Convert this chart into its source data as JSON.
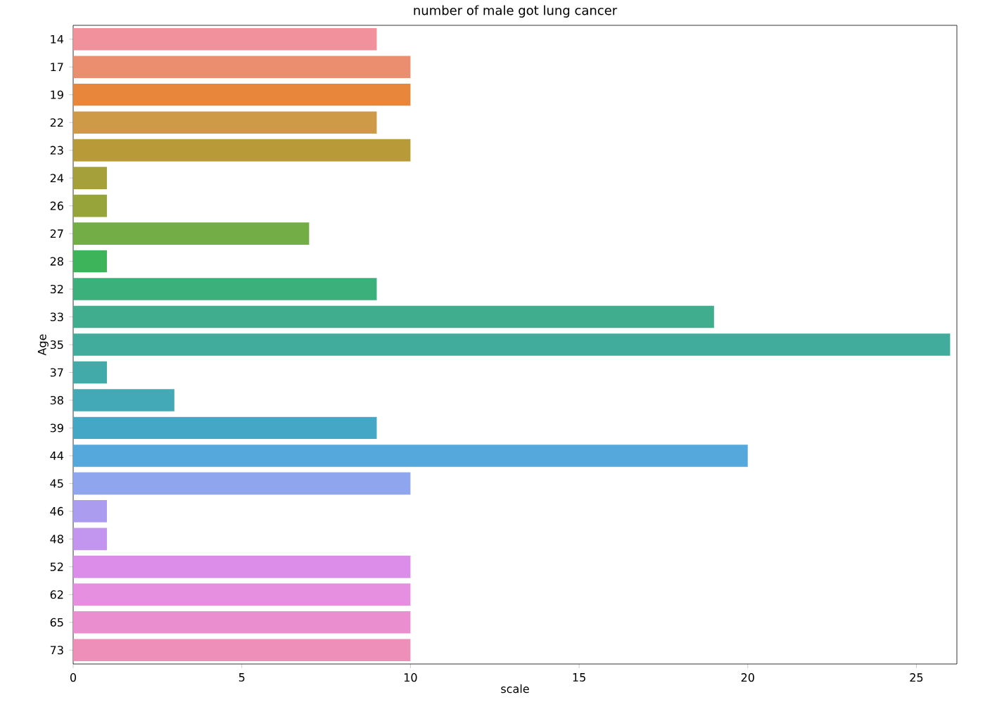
{
  "chart_data": {
    "type": "bar",
    "orientation": "horizontal",
    "title": "number of male got lung cancer",
    "xlabel": "scale",
    "ylabel": "Age",
    "categories": [
      "14",
      "17",
      "19",
      "22",
      "23",
      "24",
      "26",
      "27",
      "28",
      "32",
      "33",
      "35",
      "37",
      "38",
      "39",
      "44",
      "45",
      "46",
      "48",
      "52",
      "62",
      "65",
      "73"
    ],
    "values": [
      9,
      10,
      10,
      9,
      10,
      1,
      1,
      7,
      1,
      9,
      19,
      26,
      1,
      3,
      9,
      20,
      10,
      1,
      1,
      10,
      10,
      10,
      10
    ],
    "colors": [
      "#f0919c",
      "#eb8e6f",
      "#e8863b",
      "#cf9a48",
      "#b89a38",
      "#a6a03a",
      "#97a43a",
      "#72ae45",
      "#3db35a",
      "#3cb07b",
      "#40ae8e",
      "#41ac9c",
      "#42aaa8",
      "#44a9b6",
      "#45a7c6",
      "#55a8dc",
      "#8fa6ee",
      "#ab9cef",
      "#c296ee",
      "#dc8ce9",
      "#e68ee0",
      "#ea8ecf",
      "#ee8fba"
    ],
    "xlim": [
      0,
      26.2
    ],
    "xticks": [
      0,
      5,
      10,
      15,
      20,
      25
    ]
  }
}
